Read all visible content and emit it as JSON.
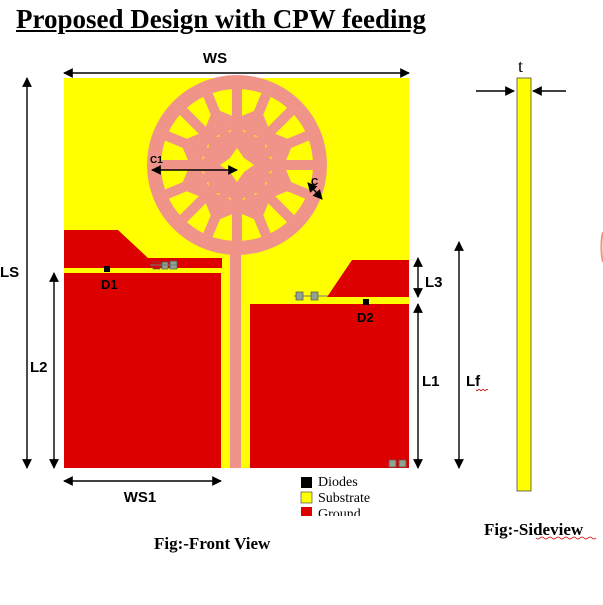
{
  "title": "Proposed Design with CPW feeding",
  "dimensions": {
    "ws": "WS",
    "ls": "LS",
    "l2": "L2",
    "ws1": "WS1",
    "l1": "L1",
    "lf": "Lf",
    "l3": "L3",
    "c1": "C1",
    "c": "C",
    "t": "t"
  },
  "diodes": {
    "d1": "D1",
    "d2": "D2"
  },
  "legend": [
    {
      "label": "Diodes",
      "color": "#000000"
    },
    {
      "label": "Substrate",
      "color": "#ffff00"
    },
    {
      "label": "Ground",
      "color": "#dd0000"
    }
  ],
  "captions": {
    "front": "Fig:-Front View",
    "side": "Fig:-Sideview"
  },
  "colors": {
    "substrate": "#ffff00",
    "ground": "#dd0000",
    "patch": "#f0948a",
    "component": "#8fa38f"
  }
}
